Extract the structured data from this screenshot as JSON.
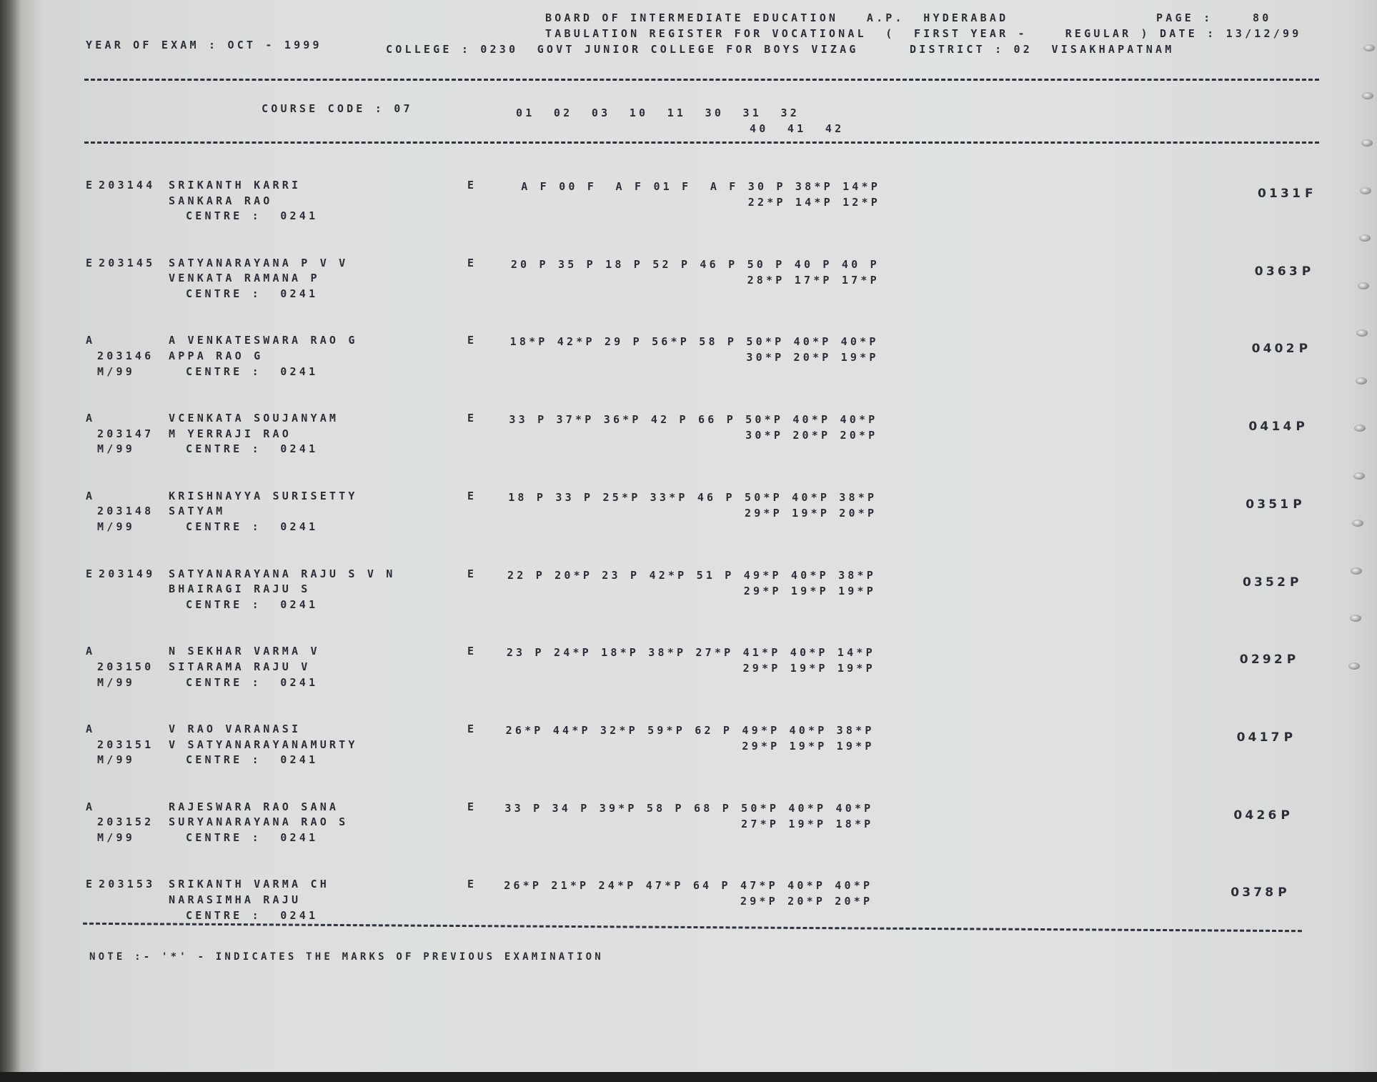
{
  "header": {
    "board": "BOARD OF INTERMEDIATE EDUCATION   A.P.  HYDERABAD",
    "page_label": "PAGE :",
    "page_number": "80",
    "register": "TABULATION REGISTER FOR VOCATIONAL  (  FIRST YEAR -    REGULAR ) DATE : 13/12/99",
    "year_of_exam": "YEAR OF EXAM : OCT - 1999",
    "college": "COLLEGE : 0230  GOVT JUNIOR COLLEGE FOR BOYS VIZAG",
    "district": "DISTRICT : 02  VISAKHAPATNAM"
  },
  "columns": {
    "course_code": "COURSE CODE : 07",
    "codes_line1": "01  02  03  10  11  30  31  32",
    "codes_line2": "40  41  42"
  },
  "records": [
    {
      "status": "E",
      "roll": "203144",
      "session": "",
      "name1": "SRIKANTH KARRI",
      "name2": "SANKARA RAO",
      "centre": "CENTRE :  0241",
      "medium": "E",
      "marks1": "A F 00 F  A F 01 F  A F 30 P 38*P 14*P",
      "marks2": "22*P 14*P 12*P",
      "total": "0131",
      "result": "F"
    },
    {
      "status": "E",
      "roll": "203145",
      "session": "",
      "name1": "SATYANARAYANA P V V",
      "name2": "VENKATA RAMANA P",
      "centre": "CENTRE :  0241",
      "medium": "E",
      "marks1": "20 P 35 P 18 P 52 P 46 P 50 P 40 P 40 P",
      "marks2": "28*P 17*P 17*P",
      "total": "0363",
      "result": "P"
    },
    {
      "status": "A",
      "roll": "203146",
      "session": "M/99",
      "name1": "A VENKATESWARA RAO G",
      "name2": "APPA RAO G",
      "centre": "CENTRE :  0241",
      "medium": "E",
      "marks1": "18*P 42*P 29 P 56*P 58 P 50*P 40*P 40*P",
      "marks2": "30*P 20*P 19*P",
      "total": "0402",
      "result": "P"
    },
    {
      "status": "A",
      "roll": "203147",
      "session": "M/99",
      "name1": "VCENKATA SOUJANYAM",
      "name2": "M YERRAJI RAO",
      "centre": "CENTRE :  0241",
      "medium": "E",
      "marks1": "33 P 37*P 36*P 42 P 66 P 50*P 40*P 40*P",
      "marks2": "30*P 20*P 20*P",
      "total": "0414",
      "result": "P"
    },
    {
      "status": "A",
      "roll": "203148",
      "session": "M/99",
      "name1": "KRISHNAYYA SURISETTY",
      "name2": "SATYAM",
      "centre": "CENTRE :  0241",
      "medium": "E",
      "marks1": "18 P 33 P 25*P 33*P 46 P 50*P 40*P 38*P",
      "marks2": "29*P 19*P 20*P",
      "total": "0351",
      "result": "P"
    },
    {
      "status": "E",
      "roll": "203149",
      "session": "",
      "name1": "SATYANARAYANA RAJU S V N",
      "name2": "BHAIRAGI RAJU S",
      "centre": "CENTRE :  0241",
      "medium": "E",
      "marks1": "22 P 20*P 23 P 42*P 51 P 49*P 40*P 38*P",
      "marks2": "29*P 19*P 19*P",
      "total": "0352",
      "result": "P"
    },
    {
      "status": "A",
      "roll": "203150",
      "session": "M/99",
      "name1": "N SEKHAR VARMA V",
      "name2": "SITARAMA RAJU V",
      "centre": "CENTRE :  0241",
      "medium": "E",
      "marks1": "23 P 24*P 18*P 38*P 27*P 41*P 40*P 14*P",
      "marks2": "29*P 19*P 19*P",
      "total": "0292",
      "result": "P"
    },
    {
      "status": "A",
      "roll": "203151",
      "session": "M/99",
      "name1": "V RAO VARANASI",
      "name2": "V SATYANARAYANAMURTY",
      "centre": "CENTRE :  0241",
      "medium": "E",
      "marks1": "26*P 44*P 32*P 59*P 62 P 49*P 40*P 38*P",
      "marks2": "29*P 19*P 19*P",
      "total": "0417",
      "result": "P"
    },
    {
      "status": "A",
      "roll": "203152",
      "session": "M/99",
      "name1": "RAJESWARA RAO SANA",
      "name2": "SURYANARAYANA RAO S",
      "centre": "CENTRE :  0241",
      "medium": "E",
      "marks1": "33 P 34 P 39*P 58 P 68 P 50*P 40*P 40*P",
      "marks2": "27*P 19*P 18*P",
      "total": "0426",
      "result": "P"
    },
    {
      "status": "E",
      "roll": "203153",
      "session": "",
      "name1": "SRIKANTH VARMA CH",
      "name2": "NARASIMHA RAJU",
      "centre": "CENTRE :  0241",
      "medium": "E",
      "marks1": "26*P 21*P 24*P 47*P 64 P 47*P 40*P 40*P",
      "marks2": "29*P 20*P 20*P",
      "total": "0378",
      "result": "P"
    }
  ],
  "footer": {
    "note": "NOTE :- '*' - INDICATES THE MARKS OF PREVIOUS EXAMINATION"
  }
}
